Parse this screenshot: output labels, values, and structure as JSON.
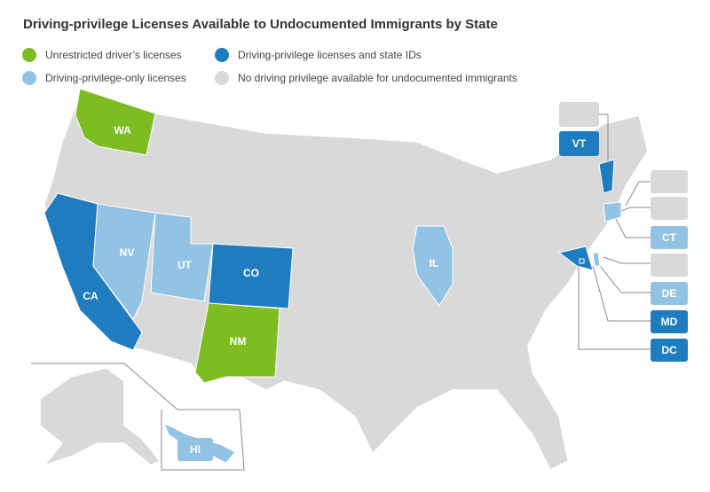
{
  "title": "Driving-privilege Licenses Available to Undocumented Immigrants by State",
  "legend": [
    {
      "label": "Unrestricted driver’s licenses",
      "color": "#7dbd22"
    },
    {
      "label": "Driving-privilege licenses and state IDs",
      "color": "#1f7dbf"
    },
    {
      "label": "Driving-privilege-only licenses",
      "color": "#93c3e3"
    },
    {
      "label": "No driving privilege available for undocumented immigrants",
      "color": "#d9d9d9"
    }
  ],
  "states": [
    {
      "label": "WA",
      "category": 0
    },
    {
      "label": "CA",
      "category": 1
    },
    {
      "label": "NV",
      "category": 2
    },
    {
      "label": "UT",
      "category": 2
    },
    {
      "label": "CO",
      "category": 1
    },
    {
      "label": "NM",
      "category": 0
    },
    {
      "label": "IL",
      "category": 2
    },
    {
      "label": "HI",
      "category": 2
    },
    {
      "label": "VT",
      "category": 1
    },
    {
      "label": "CT",
      "category": 2
    },
    {
      "label": "DE",
      "category": 2
    },
    {
      "label": "MD",
      "category": 1
    },
    {
      "label": "DC",
      "category": 1
    }
  ]
}
